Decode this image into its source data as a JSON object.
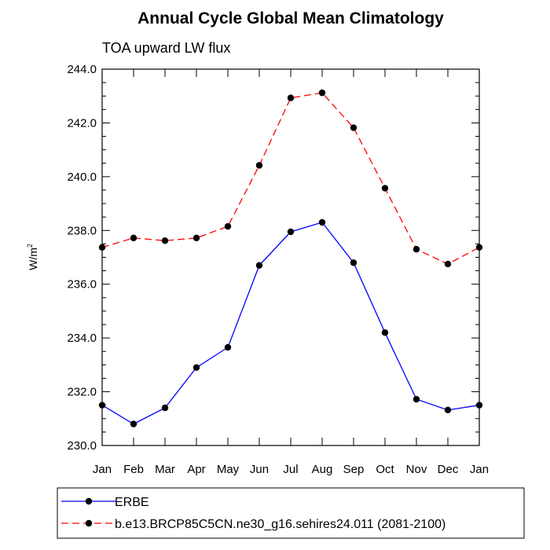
{
  "chart_data": {
    "type": "line",
    "title": "Annual Cycle Global Mean Climatology",
    "subtitle": "TOA upward LW flux",
    "xlabel": "",
    "ylabel": "W/m",
    "ylabel_superscript": "2",
    "categories": [
      "Jan",
      "Feb",
      "Mar",
      "Apr",
      "May",
      "Jun",
      "Jul",
      "Aug",
      "Sep",
      "Oct",
      "Nov",
      "Dec",
      "Jan"
    ],
    "ylim": [
      230.0,
      244.0
    ],
    "yticks": [
      "230.0",
      "232.0",
      "234.0",
      "236.0",
      "238.0",
      "240.0",
      "242.0",
      "244.0"
    ],
    "series": [
      {
        "name": "ERBE",
        "color": "#0000ff",
        "dash": "solid",
        "values": [
          231.5,
          230.8,
          231.4,
          232.9,
          233.65,
          236.7,
          237.95,
          238.3,
          236.8,
          234.2,
          231.72,
          231.32,
          231.5
        ]
      },
      {
        "name": "b.e13.BRCP85C5CN.ne30_g16.sehires24.011 (2081-2100)",
        "color": "#ff0000",
        "dash": "dashed",
        "values": [
          237.37,
          237.72,
          237.62,
          237.72,
          238.15,
          240.42,
          242.93,
          243.12,
          241.82,
          239.57,
          237.3,
          236.75,
          237.37
        ]
      }
    ],
    "legend_position": "bottom-left"
  }
}
